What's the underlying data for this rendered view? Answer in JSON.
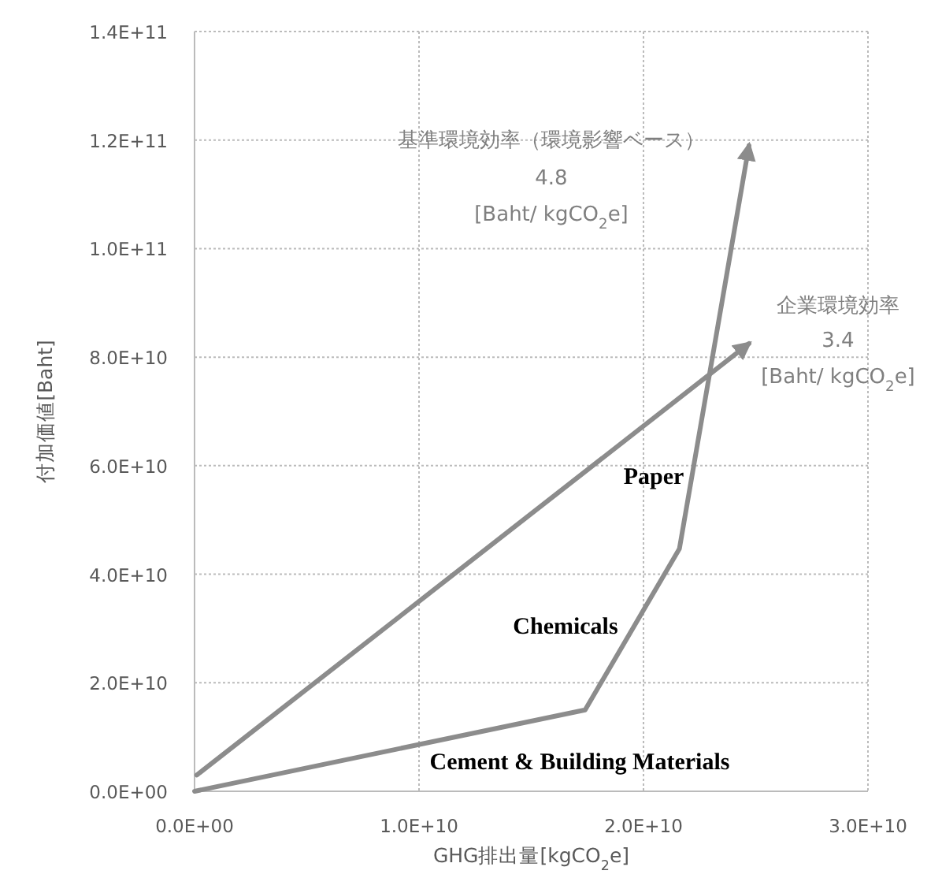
{
  "chart_data": {
    "type": "line",
    "xlabel": "GHG排出量[kgCO$_{2}$e]",
    "ylabel": "付加価値[Baht]",
    "xlim": [
      0,
      30000000000
    ],
    "ylim": [
      0,
      140000000000
    ],
    "xticks": [
      {
        "value": 0,
        "label": "0.0E+00"
      },
      {
        "value": 10000000000,
        "label": "1.0E+10"
      },
      {
        "value": 20000000000,
        "label": "2.0E+10"
      },
      {
        "value": 30000000000,
        "label": "3.0E+10"
      }
    ],
    "yticks": [
      {
        "value": 0,
        "label": "0.0E+00"
      },
      {
        "value": 20000000000,
        "label": "2.0E+10"
      },
      {
        "value": 40000000000,
        "label": "4.0E+10"
      },
      {
        "value": 60000000000,
        "label": "6.0E+10"
      },
      {
        "value": 80000000000,
        "label": "8.0E+10"
      },
      {
        "value": 100000000000,
        "label": "1.0E+11"
      },
      {
        "value": 120000000000,
        "label": "1.2E+11"
      },
      {
        "value": 140000000000,
        "label": "1.4E+11"
      }
    ],
    "grid": true,
    "marker": "none",
    "line_style": "solid",
    "series": [
      {
        "type": "line",
        "color": "#8c8c8c",
        "x": [
          0,
          17400000000,
          21600000000,
          24700000000
        ],
        "values": [
          0,
          15000000000,
          44700000000,
          119000000000
        ]
      },
      {
        "type": "line",
        "color": "#8c8c8c",
        "x": [
          100000000,
          24700000000
        ],
        "values": [
          3000000000,
          82500000000
        ]
      }
    ],
    "annotations": [
      "基準環境効率（環境影響ベース）",
      "4.8",
      "[Baht/ kgCO$_{2}$e]",
      "企業環境効率",
      "3.4",
      "[Baht/ kgCO$_{2}$e]",
      "Paper",
      "Chemicals",
      "Cement & Building Materials"
    ]
  }
}
